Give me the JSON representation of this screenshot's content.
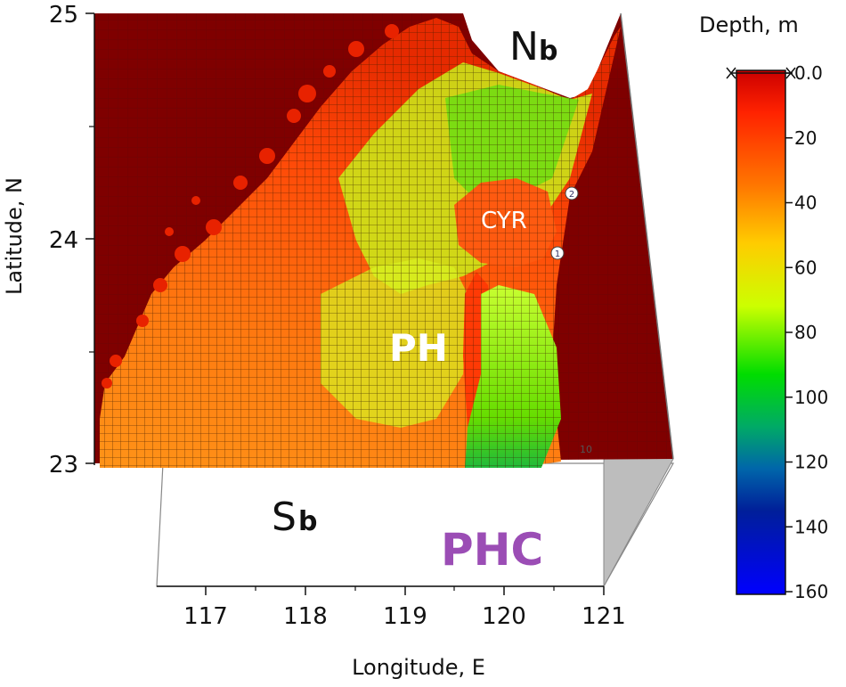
{
  "chart_data": {
    "type": "surface",
    "title": "",
    "xlabel": "Longitude, E",
    "ylabel": "Latitude, N",
    "x_ticks": [
      117,
      118,
      119,
      120,
      121
    ],
    "y_ticks": [
      23,
      24,
      25
    ],
    "xlim": [
      116.5,
      121
    ],
    "ylim": [
      23,
      25
    ],
    "colorbar": {
      "title": "Depth, m",
      "ticks": [
        "0.0",
        "20",
        "40",
        "60",
        "80",
        "100",
        "120",
        "140",
        "160"
      ],
      "range": [
        0,
        160
      ],
      "colors": [
        "#cc0000",
        "#ff3300",
        "#ff8800",
        "#ffdd00",
        "#aaff00",
        "#00cc00",
        "#009966",
        "#0033aa",
        "#0000ff"
      ]
    },
    "annotations": [
      {
        "text": "N",
        "sub": "b"
      },
      {
        "text": "S",
        "sub": "b"
      },
      {
        "text": "CYR"
      },
      {
        "text": "PH"
      },
      {
        "text": "PHC"
      }
    ],
    "markers": [
      "1",
      "2"
    ],
    "minor_label": "10"
  }
}
